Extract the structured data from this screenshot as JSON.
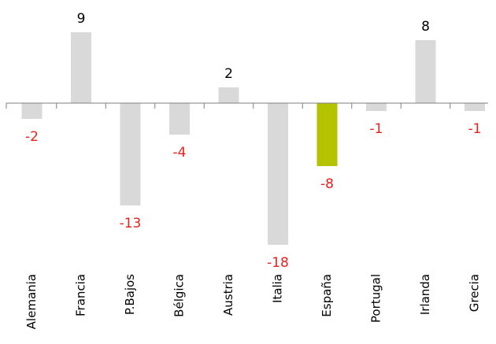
{
  "chart_data": {
    "type": "bar",
    "categories": [
      "Alemania",
      "Francia",
      "P.Bajos",
      "Bélgica",
      "Austria",
      "Italia",
      "España",
      "Portugal",
      "Irlanda",
      "Grecia"
    ],
    "values": [
      -2,
      9,
      -13,
      -4,
      2,
      -18,
      -8,
      -1,
      8,
      -1
    ],
    "data_labels": [
      "-2",
      "9",
      "-13",
      "-4",
      "2",
      "-18",
      "-8",
      "-1",
      "8",
      "-1"
    ],
    "title": "",
    "xlabel": "",
    "ylabel": "",
    "ylim": [
      -18,
      9
    ],
    "grid": false,
    "legend": "none",
    "highlight_category": "España",
    "colors": {
      "bar": "#d9d9d9",
      "highlight": "#b5c200",
      "positive_label": "#000000",
      "negative_label": "#e8201c",
      "axis": "#7f7f7f"
    }
  }
}
